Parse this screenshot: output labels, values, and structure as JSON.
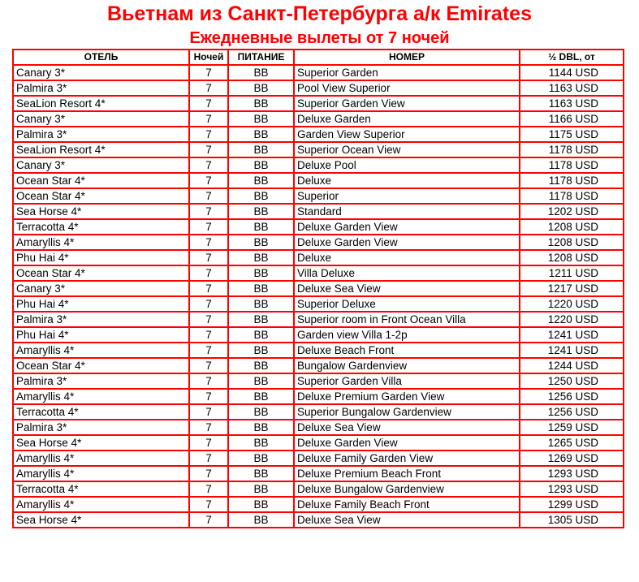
{
  "title": "Вьетнам из Санкт-Петербурга а/к Emirates",
  "subtitle": "Ежедневные вылеты от 7 ночей",
  "accent_color": "#ff0000",
  "table": {
    "headers": [
      "ОТЕЛЬ",
      "Ночей",
      "ПИТАНИЕ",
      "НОМЕР",
      "½ DBL, от"
    ],
    "rows": [
      [
        "Canary 3*",
        "7",
        "BB",
        "Superior Garden",
        "1144 USD"
      ],
      [
        "Palmira 3*",
        "7",
        "BB",
        "Pool View Superior",
        "1163 USD"
      ],
      [
        "SeaLion Resort 4*",
        "7",
        "BB",
        "Superior Garden View",
        "1163 USD"
      ],
      [
        "Canary 3*",
        "7",
        "BB",
        "Deluxe Garden",
        "1166 USD"
      ],
      [
        "Palmira 3*",
        "7",
        "BB",
        "Garden View Superior",
        "1175 USD"
      ],
      [
        "SeaLion Resort 4*",
        "7",
        "BB",
        "Superior Ocean View",
        "1178 USD"
      ],
      [
        "Canary 3*",
        "7",
        "BB",
        "Deluxe Pool",
        "1178 USD"
      ],
      [
        "Ocean Star 4*",
        "7",
        "BB",
        "Deluxe",
        "1178 USD"
      ],
      [
        "Ocean Star 4*",
        "7",
        "BB",
        "Superior",
        "1178 USD"
      ],
      [
        "Sea Horse 4*",
        "7",
        "BB",
        "Standard",
        "1202 USD"
      ],
      [
        "Terracotta 4*",
        "7",
        "BB",
        "Deluxe Garden View",
        "1208 USD"
      ],
      [
        "Amaryllis 4*",
        "7",
        "BB",
        "Deluxe Garden View",
        "1208 USD"
      ],
      [
        "Phu Hai 4*",
        "7",
        "BB",
        "Deluxe",
        "1208 USD"
      ],
      [
        "Ocean Star 4*",
        "7",
        "BB",
        "Villa Deluxe",
        "1211 USD"
      ],
      [
        "Canary 3*",
        "7",
        "BB",
        "Deluxe Sea View",
        "1217 USD"
      ],
      [
        "Phu Hai 4*",
        "7",
        "BB",
        "Superior Deluxe",
        "1220 USD"
      ],
      [
        "Palmira 3*",
        "7",
        "BB",
        "Superior room in Front Ocean Villa",
        "1220 USD"
      ],
      [
        "Phu Hai 4*",
        "7",
        "BB",
        "Garden view Villa 1-2p",
        "1241 USD"
      ],
      [
        "Amaryllis 4*",
        "7",
        "BB",
        "Deluxe Beach Front",
        "1241 USD"
      ],
      [
        "Ocean Star 4*",
        "7",
        "BB",
        "Bungalow Gardenview",
        "1244 USD"
      ],
      [
        "Palmira 3*",
        "7",
        "BB",
        "Superior Garden Villa",
        "1250 USD"
      ],
      [
        "Amaryllis 4*",
        "7",
        "BB",
        "Deluxe Premium Garden View",
        "1256 USD"
      ],
      [
        "Terracotta 4*",
        "7",
        "BB",
        "Superior Bungalow Gardenview",
        "1256 USD"
      ],
      [
        "Palmira 3*",
        "7",
        "BB",
        "Deluxe Sea View",
        "1259 USD"
      ],
      [
        "Sea Horse 4*",
        "7",
        "BB",
        "Deluxe Garden View",
        "1265 USD"
      ],
      [
        "Amaryllis 4*",
        "7",
        "BB",
        "Deluxe Family Garden View",
        "1269 USD"
      ],
      [
        "Amaryllis 4*",
        "7",
        "BB",
        "Deluxe Premium Beach Front",
        "1293 USD"
      ],
      [
        "Terracotta 4*",
        "7",
        "BB",
        "Deluxe Bungalow Gardenview",
        "1293 USD"
      ],
      [
        "Amaryllis 4*",
        "7",
        "BB",
        "Deluxe Family Beach Front",
        "1299 USD"
      ],
      [
        "Sea Horse 4*",
        "7",
        "BB",
        "Deluxe Sea View",
        "1305 USD"
      ]
    ]
  }
}
